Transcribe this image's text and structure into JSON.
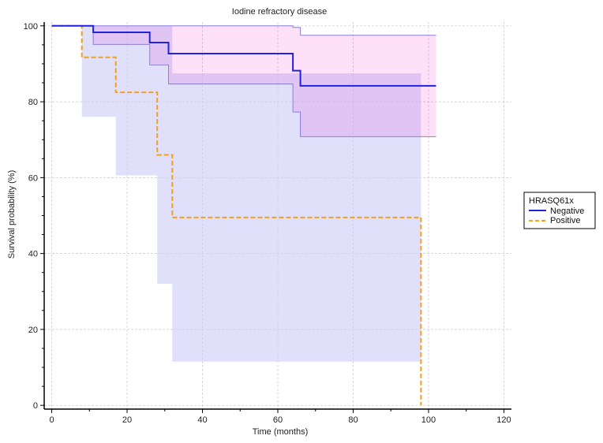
{
  "chart_data": {
    "type": "line",
    "subtype": "kaplan-meier",
    "title": "Iodine refractory disease",
    "xlabel": "Time (months)",
    "ylabel": "Survival probability (%)",
    "xlim": [
      -2,
      122
    ],
    "ylim": [
      -1,
      101
    ],
    "xticks": [
      0,
      20,
      40,
      60,
      80,
      100,
      120
    ],
    "yticks": [
      0,
      20,
      40,
      60,
      80,
      100
    ],
    "xtick_labels": [
      "0",
      "20",
      "40",
      "60",
      "80",
      "100",
      "120"
    ],
    "ytick_labels": [
      "0",
      "20",
      "40",
      "60",
      "80",
      "100"
    ],
    "grid": true,
    "legend": {
      "title": "HRASQ61x",
      "placement": "right",
      "entries": [
        "Negative",
        "Positive"
      ]
    },
    "colors": {
      "negative_line": "#2222dd",
      "positive_line": "#f0a020",
      "negative_band": "#ffd6f7",
      "positive_band": "#cfcff7",
      "overlap_band": "#c9b6f5",
      "grid": "#c8c8c8",
      "axis": "#000000"
    },
    "series": [
      {
        "name": "Negative",
        "style": "solid",
        "steps": [
          [
            0,
            100
          ],
          [
            11,
            98.3
          ],
          [
            26,
            95.6
          ],
          [
            31,
            92.7
          ],
          [
            64,
            88.2
          ],
          [
            66,
            84.2
          ],
          [
            102,
            84.2
          ]
        ],
        "ci_upper": [
          [
            0,
            100
          ],
          [
            11,
            100
          ],
          [
            26,
            100
          ],
          [
            31,
            100
          ],
          [
            64,
            99.6
          ],
          [
            66,
            97.5
          ],
          [
            102,
            97.5
          ]
        ],
        "ci_lower": [
          [
            0,
            100
          ],
          [
            11,
            95.1
          ],
          [
            26,
            89.7
          ],
          [
            31,
            84.7
          ],
          [
            64,
            77.3
          ],
          [
            66,
            70.8
          ],
          [
            102,
            70.8
          ]
        ]
      },
      {
        "name": "Positive",
        "style": "dashed",
        "steps": [
          [
            0,
            100
          ],
          [
            8,
            91.7
          ],
          [
            17,
            82.5
          ],
          [
            28,
            66.0
          ],
          [
            32,
            49.5
          ],
          [
            98,
            0
          ]
        ],
        "ci_upper": [
          [
            0,
            100
          ],
          [
            8,
            100
          ],
          [
            17,
            100
          ],
          [
            28,
            100
          ],
          [
            32,
            87.5
          ],
          [
            98,
            87.5
          ]
        ],
        "ci_lower": [
          [
            0,
            100
          ],
          [
            8,
            76.0
          ],
          [
            17,
            60.6
          ],
          [
            28,
            32.0
          ],
          [
            32,
            11.5
          ],
          [
            98,
            11.5
          ]
        ]
      }
    ]
  }
}
